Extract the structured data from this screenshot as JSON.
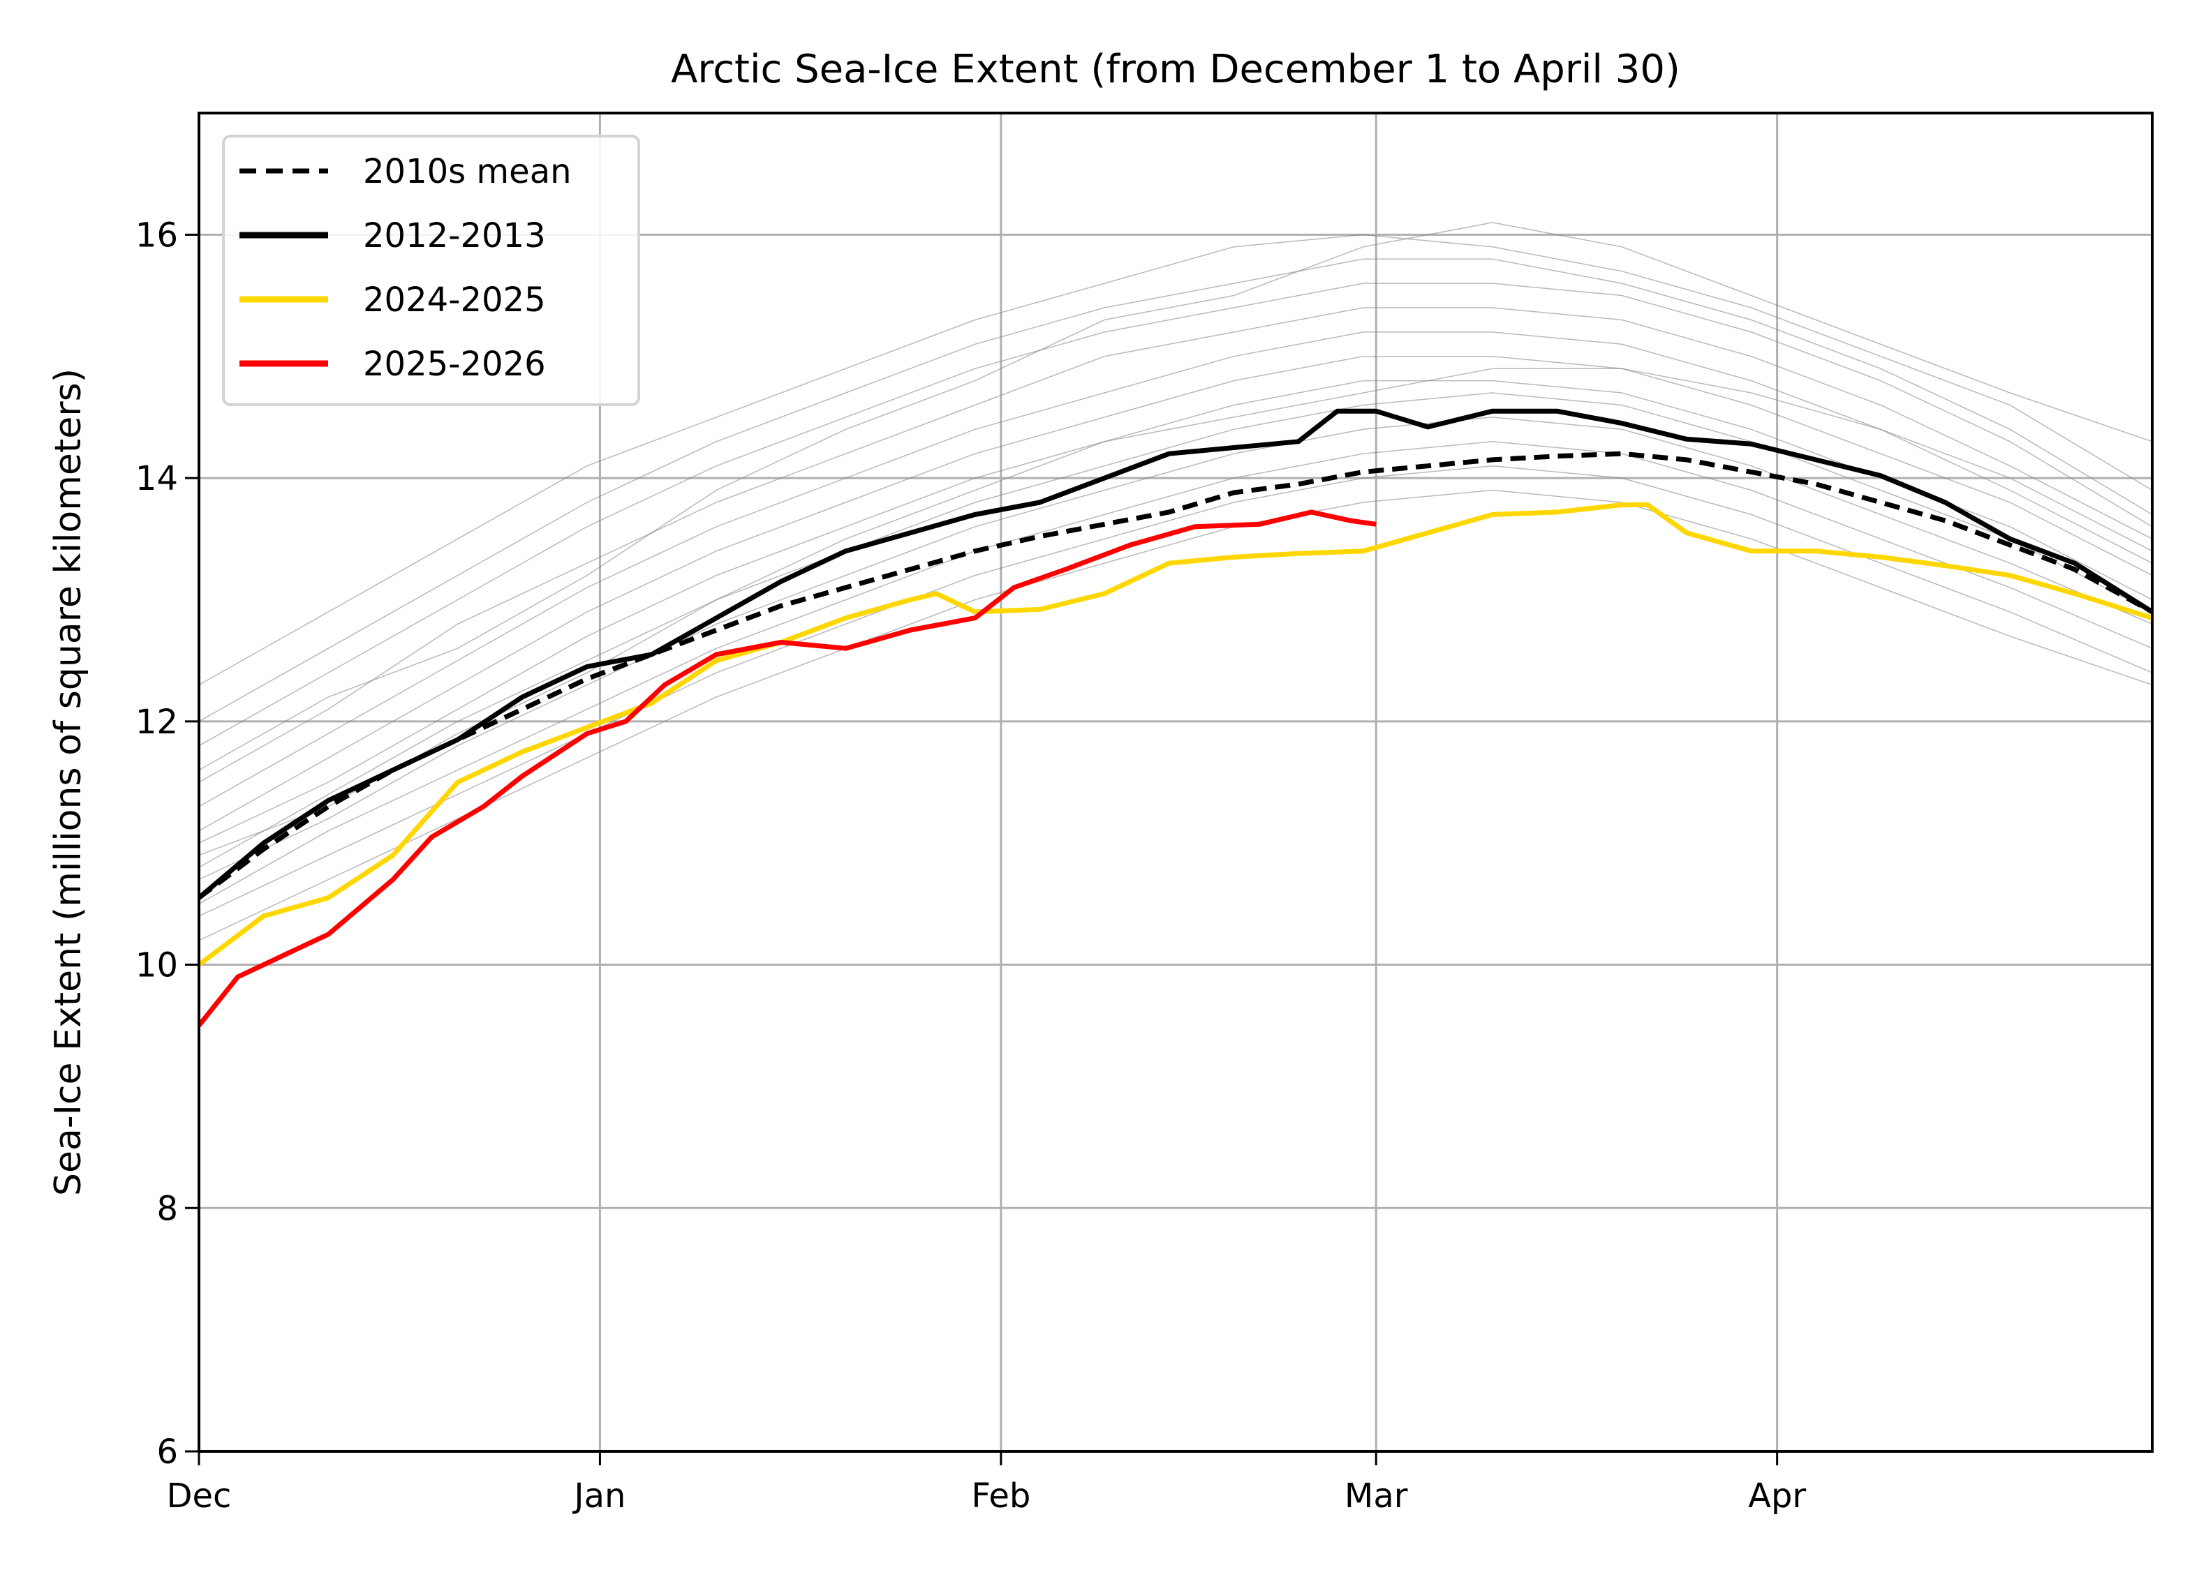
{
  "chart_data": {
    "type": "line",
    "title": "Arctic Sea-Ice Extent (from December 1 to April 30)",
    "xlabel": "",
    "ylabel": "Sea-Ice Extent (millions of square kilometers)",
    "x_unit": "days since December 1",
    "xlim": [
      0,
      151
    ],
    "ylim": [
      6,
      17
    ],
    "grid": true,
    "legend_position": "top-left",
    "x_ticks": [
      {
        "day": 0,
        "label": "Dec"
      },
      {
        "day": 31,
        "label": "Jan"
      },
      {
        "day": 62,
        "label": "Feb"
      },
      {
        "day": 91,
        "label": "Mar"
      },
      {
        "day": 122,
        "label": "Apr"
      }
    ],
    "y_ticks": [
      {
        "value": 6,
        "label": "6"
      },
      {
        "value": 8,
        "label": "8"
      },
      {
        "value": 10,
        "label": "10"
      },
      {
        "value": 12,
        "label": "12"
      },
      {
        "value": 14,
        "label": "14"
      },
      {
        "value": 16,
        "label": "16"
      }
    ],
    "series": [
      {
        "name": "2010s mean",
        "color": "#000000",
        "style": "dashed",
        "in_legend": true,
        "x": [
          0,
          5,
          10,
          15,
          20,
          25,
          30,
          35,
          40,
          45,
          50,
          55,
          60,
          65,
          70,
          75,
          80,
          85,
          90,
          95,
          100,
          105,
          110,
          115,
          120,
          125,
          130,
          135,
          140,
          145,
          151
        ],
        "y": [
          10.55,
          10.95,
          11.3,
          11.6,
          11.85,
          12.1,
          12.35,
          12.55,
          12.75,
          12.95,
          13.1,
          13.25,
          13.4,
          13.52,
          13.62,
          13.72,
          13.88,
          13.95,
          14.05,
          14.1,
          14.15,
          14.18,
          14.2,
          14.15,
          14.05,
          13.95,
          13.8,
          13.65,
          13.45,
          13.25,
          12.9
        ]
      },
      {
        "name": "2012-2013",
        "color": "#000000",
        "style": "solid",
        "in_legend": true,
        "x": [
          0,
          5,
          10,
          15,
          20,
          25,
          30,
          35,
          40,
          45,
          50,
          55,
          60,
          65,
          70,
          75,
          80,
          85,
          88,
          91,
          95,
          100,
          105,
          110,
          115,
          120,
          125,
          130,
          135,
          140,
          145,
          151
        ],
        "y": [
          10.55,
          11.0,
          11.35,
          11.6,
          11.85,
          12.2,
          12.45,
          12.55,
          12.85,
          13.15,
          13.4,
          13.55,
          13.7,
          13.8,
          14.0,
          14.2,
          14.25,
          14.3,
          14.55,
          14.55,
          14.42,
          14.55,
          14.55,
          14.45,
          14.32,
          14.28,
          14.15,
          14.02,
          13.8,
          13.5,
          13.3,
          12.9
        ]
      },
      {
        "name": "2024-2025",
        "color": "#FFD700",
        "style": "solid",
        "in_legend": true,
        "x": [
          0,
          5,
          10,
          15,
          20,
          25,
          30,
          35,
          40,
          45,
          50,
          55,
          57,
          60,
          65,
          70,
          75,
          80,
          85,
          90,
          95,
          100,
          105,
          110,
          112,
          115,
          120,
          125,
          130,
          135,
          140,
          145,
          151
        ],
        "y": [
          10.0,
          10.4,
          10.55,
          10.9,
          11.5,
          11.75,
          11.95,
          12.15,
          12.5,
          12.65,
          12.85,
          13.0,
          13.05,
          12.9,
          12.92,
          13.05,
          13.3,
          13.35,
          13.38,
          13.4,
          13.55,
          13.7,
          13.72,
          13.78,
          13.78,
          13.55,
          13.4,
          13.4,
          13.35,
          13.28,
          13.2,
          13.05,
          12.85
        ]
      },
      {
        "name": "2025-2026",
        "color": "#FF0000",
        "style": "solid",
        "in_legend": true,
        "x": [
          0,
          3,
          7,
          10,
          15,
          18,
          22,
          25,
          30,
          33,
          36,
          40,
          45,
          50,
          55,
          60,
          63,
          67,
          72,
          77,
          82,
          86,
          89,
          91
        ],
        "y": [
          9.5,
          9.9,
          10.1,
          10.25,
          10.7,
          11.05,
          11.3,
          11.55,
          11.9,
          12.0,
          12.3,
          12.55,
          12.65,
          12.6,
          12.75,
          12.85,
          13.1,
          13.25,
          13.45,
          13.6,
          13.62,
          13.72,
          13.65,
          13.62
        ]
      }
    ],
    "background_series": {
      "color": "#808080",
      "description": "individual historical seasons (thin gray)",
      "x": [
        0,
        10,
        20,
        30,
        40,
        50,
        60,
        70,
        80,
        90,
        100,
        110,
        120,
        130,
        140,
        151
      ],
      "y": [
        [
          12.3,
          12.9,
          13.5,
          14.1,
          14.5,
          14.9,
          15.3,
          15.6,
          15.9,
          16.0,
          15.9,
          15.7,
          15.4,
          15.0,
          14.6,
          13.9
        ],
        [
          12.0,
          12.6,
          13.2,
          13.8,
          14.3,
          14.7,
          15.1,
          15.4,
          15.6,
          15.8,
          15.8,
          15.6,
          15.3,
          14.9,
          14.4,
          13.7
        ],
        [
          11.8,
          12.4,
          13.0,
          13.6,
          14.1,
          14.5,
          14.9,
          15.2,
          15.4,
          15.6,
          15.6,
          15.5,
          15.2,
          14.8,
          14.3,
          13.6
        ],
        [
          11.5,
          12.1,
          12.8,
          13.3,
          13.8,
          14.2,
          14.6,
          15.0,
          15.2,
          15.4,
          15.4,
          15.3,
          15.0,
          14.6,
          14.1,
          13.5
        ],
        [
          11.3,
          11.9,
          12.5,
          13.1,
          13.6,
          14.0,
          14.4,
          14.7,
          15.0,
          15.2,
          15.2,
          15.1,
          14.8,
          14.4,
          13.9,
          13.3
        ],
        [
          11.1,
          11.7,
          12.3,
          12.9,
          13.4,
          13.8,
          14.2,
          14.5,
          14.8,
          15.0,
          15.0,
          14.9,
          14.6,
          14.2,
          13.8,
          13.2
        ],
        [
          11.0,
          11.5,
          12.1,
          12.7,
          13.2,
          13.6,
          14.0,
          14.3,
          14.6,
          14.8,
          14.8,
          14.7,
          14.4,
          14.0,
          13.6,
          13.0
        ],
        [
          10.8,
          11.4,
          12.0,
          12.5,
          13.0,
          13.4,
          13.8,
          14.1,
          14.4,
          14.6,
          14.7,
          14.6,
          14.3,
          13.9,
          13.5,
          12.9
        ],
        [
          10.7,
          11.2,
          11.8,
          12.3,
          12.8,
          13.2,
          13.6,
          13.9,
          14.2,
          14.4,
          14.5,
          14.4,
          14.1,
          13.7,
          13.3,
          12.8
        ],
        [
          10.5,
          11.1,
          11.6,
          12.1,
          12.6,
          13.0,
          13.4,
          13.7,
          14.0,
          14.2,
          14.3,
          14.2,
          13.9,
          13.5,
          13.1,
          12.6
        ],
        [
          10.4,
          10.9,
          11.4,
          11.9,
          12.4,
          12.8,
          13.2,
          13.5,
          13.8,
          14.0,
          14.1,
          14.0,
          13.7,
          13.3,
          12.9,
          12.4
        ],
        [
          10.2,
          10.7,
          11.2,
          11.7,
          12.2,
          12.6,
          13.0,
          13.3,
          13.6,
          13.8,
          13.9,
          13.8,
          13.5,
          13.1,
          12.7,
          12.3
        ],
        [
          11.6,
          12.2,
          12.6,
          13.2,
          13.9,
          14.4,
          14.8,
          15.3,
          15.5,
          15.9,
          16.1,
          15.9,
          15.5,
          15.1,
          14.7,
          14.3
        ],
        [
          10.9,
          11.3,
          11.9,
          12.4,
          13.0,
          13.5,
          13.9,
          14.3,
          14.5,
          14.7,
          14.9,
          14.9,
          14.7,
          14.4,
          14.0,
          13.4
        ]
      ]
    }
  }
}
